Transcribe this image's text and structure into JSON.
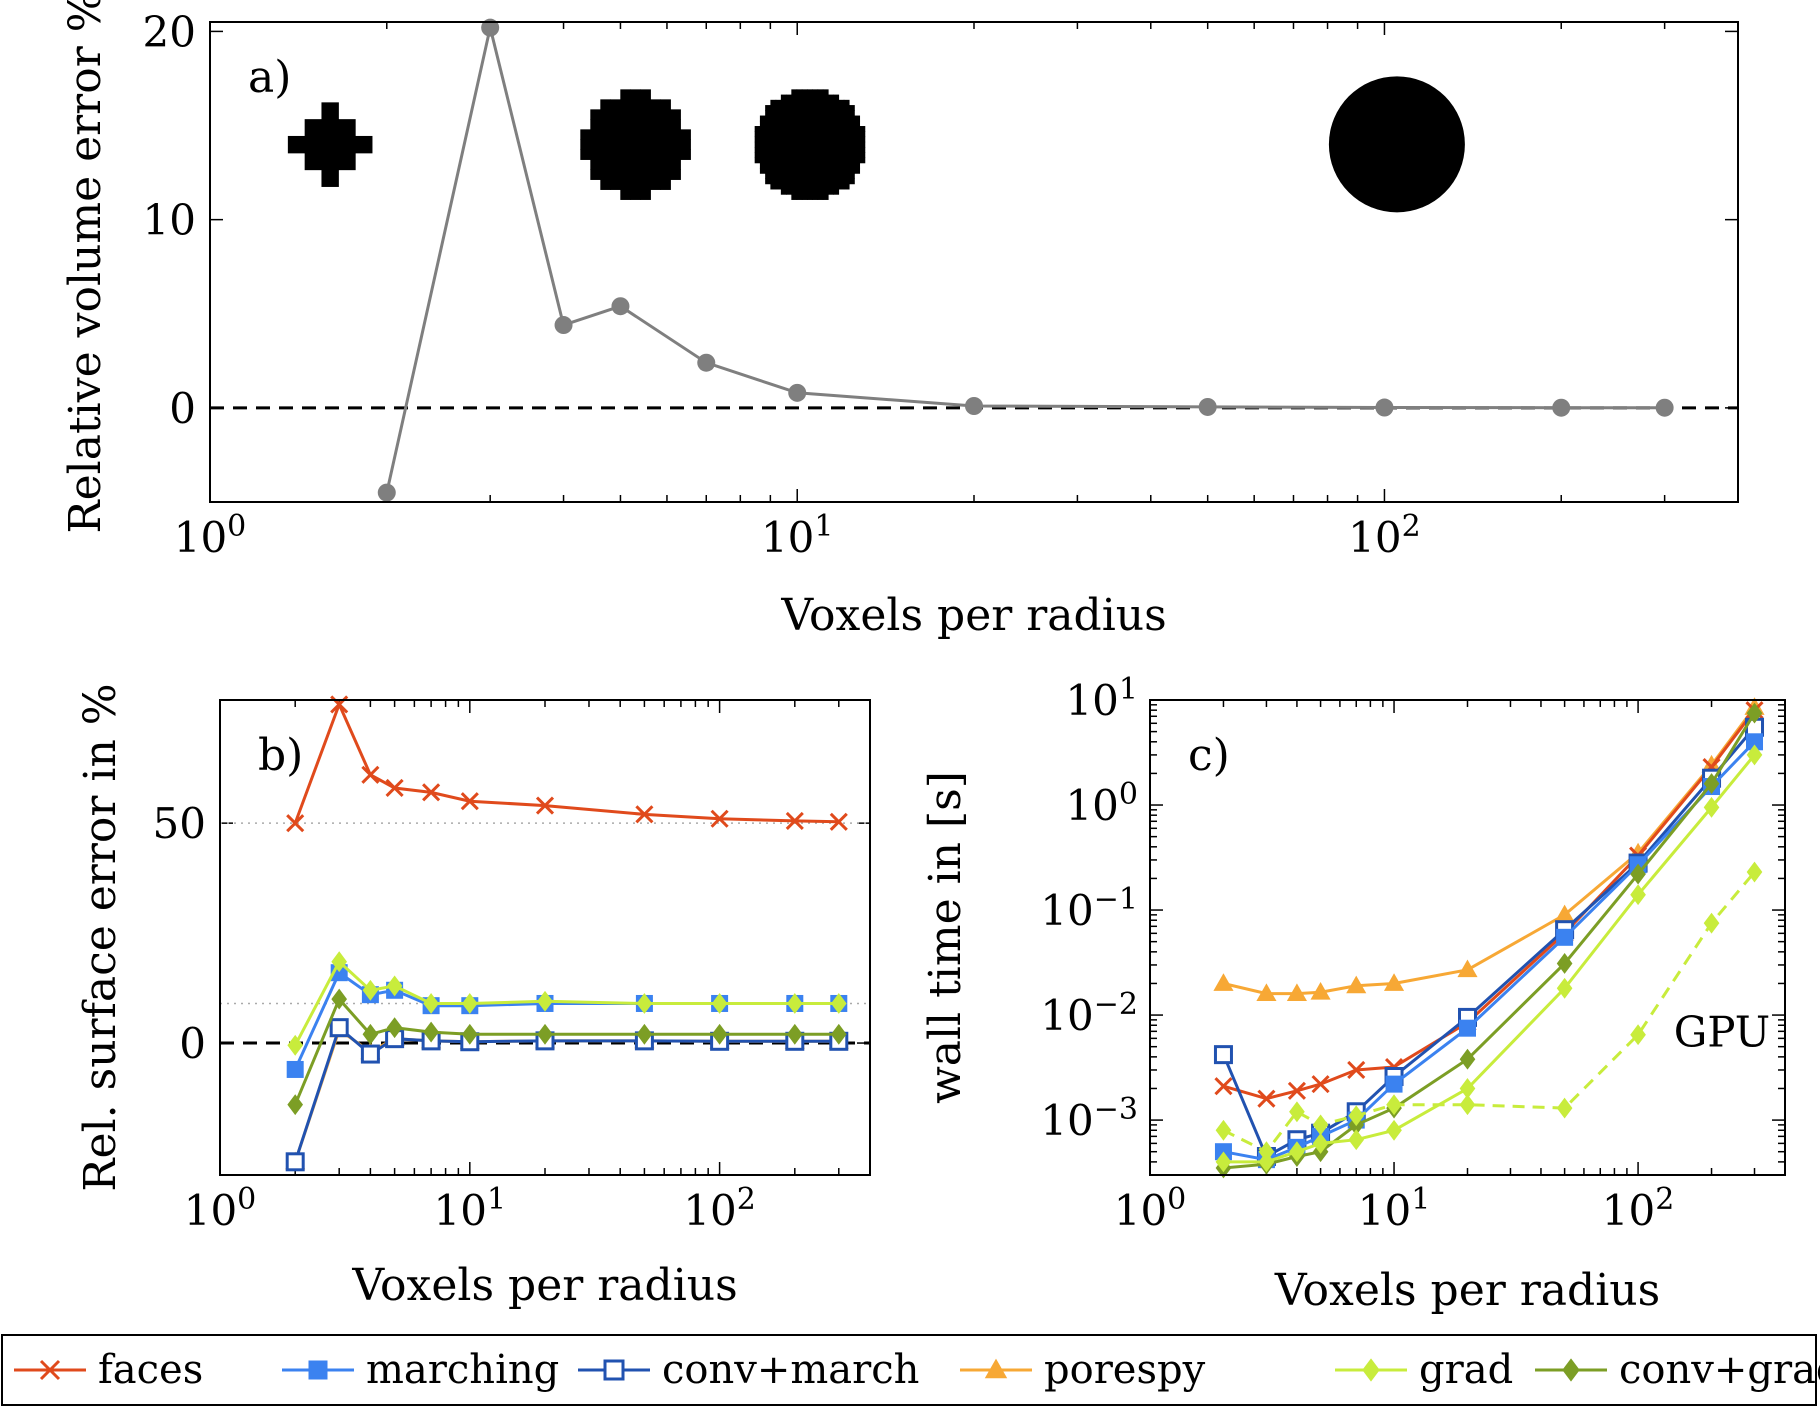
{
  "colors": {
    "faces": "#e04a1c",
    "marching": "#3b82f0",
    "conv_march": "#2152b0",
    "porespy": "#f7a835",
    "grad": "#c8ec3c",
    "conv_grad": "#7c9e25",
    "volume_line": "#7f7f7f",
    "reference": "#000000",
    "guide": "#aaaaaa"
  },
  "legend": {
    "items": [
      {
        "key": "faces",
        "label": "faces",
        "marker": "cross"
      },
      {
        "key": "marching",
        "label": "marching",
        "marker": "square-filled"
      },
      {
        "key": "conv_march",
        "label": "conv+march",
        "marker": "square-open"
      },
      {
        "key": "porespy",
        "label": "porespy",
        "marker": "triangle"
      },
      {
        "key": "grad",
        "label": "grad",
        "marker": "diamond"
      },
      {
        "key": "conv_grad",
        "label": "conv+grad",
        "marker": "diamond"
      }
    ]
  },
  "chart_data": [
    {
      "id": "a",
      "type": "line",
      "panel_label": "a)",
      "xlabel": "Voxels per radius",
      "ylabel": "Relative volume error %",
      "xscale": "log",
      "xlim": [
        1,
        400
      ],
      "ylim": [
        -5,
        20.5
      ],
      "xticks": [
        {
          "value": 1,
          "base": "10",
          "exp": "0"
        },
        {
          "value": 10,
          "base": "10",
          "exp": "1"
        },
        {
          "value": 100,
          "base": "10",
          "exp": "2"
        }
      ],
      "yticks": [
        {
          "value": 0,
          "label": "0"
        },
        {
          "value": 10,
          "label": "10"
        },
        {
          "value": 20,
          "label": "20"
        }
      ],
      "reference_line": {
        "y": 0,
        "style": "dashed"
      },
      "insets": [
        {
          "shape": "voxel-sphere",
          "resolution": 2,
          "x": 1.6,
          "y": 14
        },
        {
          "shape": "voxel-sphere",
          "resolution": 5,
          "x": 5.3,
          "y": 14
        },
        {
          "shape": "voxel-sphere",
          "resolution": 10,
          "x": 10.5,
          "y": 14
        },
        {
          "shape": "sphere",
          "resolution": 100,
          "x": 105,
          "y": 14
        }
      ],
      "series": [
        {
          "key": "volume",
          "x": [
            2,
            3,
            4,
            5,
            7,
            10,
            20,
            50,
            100,
            200,
            300
          ],
          "y": [
            -4.5,
            20.2,
            4.4,
            5.4,
            2.4,
            0.8,
            0.1,
            0.05,
            0.02,
            0.01,
            0.01
          ],
          "marker": "circle"
        }
      ]
    },
    {
      "id": "b",
      "type": "line",
      "panel_label": "b)",
      "xlabel": "Voxels per radius",
      "ylabel": "Rel. surface error in %",
      "xscale": "log",
      "xlim": [
        1,
        400
      ],
      "ylim": [
        -30,
        78
      ],
      "xticks": [
        {
          "value": 1,
          "base": "10",
          "exp": "0"
        },
        {
          "value": 10,
          "base": "10",
          "exp": "1"
        },
        {
          "value": 100,
          "base": "10",
          "exp": "2"
        }
      ],
      "yticks": [
        {
          "value": 0,
          "label": "0"
        },
        {
          "value": 50,
          "label": "50"
        }
      ],
      "reference_line": {
        "y": 0,
        "style": "dashed"
      },
      "guide_lines": [
        50,
        9
      ],
      "series": [
        {
          "key": "faces",
          "x": [
            2,
            3,
            4,
            5,
            7,
            10,
            20,
            50,
            100,
            200,
            300
          ],
          "y": [
            50,
            77,
            61,
            58,
            57,
            55,
            54,
            52,
            51,
            50.5,
            50.3
          ]
        },
        {
          "key": "porespy",
          "x": [
            2,
            3,
            4,
            5,
            7,
            10,
            20,
            50,
            100,
            200,
            300
          ],
          "y": [
            -27,
            3,
            -2,
            1,
            0.5,
            0.3,
            0.5,
            0.5,
            0.4,
            0.4,
            0.4
          ]
        },
        {
          "key": "marching",
          "x": [
            2,
            3,
            4,
            5,
            7,
            10,
            20,
            50,
            100,
            200,
            300
          ],
          "y": [
            -6,
            16,
            11,
            12,
            8.5,
            8.5,
            9,
            9,
            9,
            9,
            9
          ]
        },
        {
          "key": "conv_march",
          "x": [
            2,
            3,
            4,
            5,
            7,
            10,
            20,
            50,
            100,
            200,
            300
          ],
          "y": [
            -27,
            3.5,
            -2.5,
            1,
            0.5,
            0.3,
            0.5,
            0.5,
            0.4,
            0.4,
            0.4
          ]
        },
        {
          "key": "conv_grad",
          "x": [
            2,
            3,
            4,
            5,
            7,
            10,
            20,
            50,
            100,
            200,
            300
          ],
          "y": [
            -14,
            10,
            2,
            3.5,
            2.5,
            2,
            2,
            2,
            2,
            2,
            2
          ]
        },
        {
          "key": "grad",
          "x": [
            2,
            3,
            4,
            5,
            7,
            10,
            20,
            50,
            100,
            200,
            300
          ],
          "y": [
            -0.5,
            18.5,
            12,
            13,
            9,
            9,
            9.5,
            9,
            9,
            9,
            9
          ]
        }
      ]
    },
    {
      "id": "c",
      "type": "line",
      "panel_label": "c)",
      "xlabel": "Voxels per radius",
      "ylabel": "wall time in [s]",
      "xscale": "log",
      "yscale": "log",
      "xlim": [
        1,
        400
      ],
      "ylim": [
        0.0003,
        10
      ],
      "xticks": [
        {
          "value": 1,
          "base": "10",
          "exp": "0"
        },
        {
          "value": 10,
          "base": "10",
          "exp": "1"
        },
        {
          "value": 100,
          "base": "10",
          "exp": "2"
        }
      ],
      "yticks": [
        {
          "value": 0.001,
          "base": "10",
          "exp": "−3"
        },
        {
          "value": 0.01,
          "base": "10",
          "exp": "−2"
        },
        {
          "value": 0.1,
          "base": "10",
          "exp": "−1"
        },
        {
          "value": 1,
          "base": "10",
          "exp": "0"
        },
        {
          "value": 10,
          "base": "10",
          "exp": "1"
        }
      ],
      "annotation": {
        "text": "GPU",
        "x": 140,
        "y": 0.007
      },
      "series": [
        {
          "key": "porespy",
          "x": [
            2,
            3,
            4,
            5,
            7,
            10,
            20,
            50,
            100,
            200,
            300
          ],
          "y": [
            0.02,
            0.016,
            0.016,
            0.0165,
            0.019,
            0.02,
            0.027,
            0.09,
            0.35,
            2.4,
            8.5
          ]
        },
        {
          "key": "faces",
          "x": [
            2,
            3,
            4,
            5,
            7,
            10,
            20,
            50,
            100,
            200,
            300
          ],
          "y": [
            0.0021,
            0.0016,
            0.0019,
            0.0022,
            0.003,
            0.0032,
            0.0085,
            0.06,
            0.33,
            2.3,
            8
          ]
        },
        {
          "key": "conv_march",
          "x": [
            2,
            3,
            4,
            5,
            7,
            10,
            20,
            50,
            100,
            200,
            300
          ],
          "y": [
            0.0042,
            0.00045,
            0.00065,
            0.00075,
            0.0012,
            0.0026,
            0.0095,
            0.065,
            0.28,
            1.8,
            5.5
          ]
        },
        {
          "key": "marching",
          "x": [
            2,
            3,
            4,
            5,
            7,
            10,
            20,
            50,
            100,
            200,
            300
          ],
          "y": [
            0.0005,
            0.00042,
            0.00055,
            0.0007,
            0.001,
            0.0022,
            0.0075,
            0.055,
            0.27,
            1.5,
            4
          ]
        },
        {
          "key": "conv_grad",
          "x": [
            2,
            3,
            4,
            5,
            7,
            10,
            20,
            50,
            100,
            200,
            300
          ],
          "y": [
            0.00035,
            0.00038,
            0.00045,
            0.0005,
            0.0009,
            0.0013,
            0.0038,
            0.031,
            0.22,
            1.6,
            7.5
          ]
        },
        {
          "key": "grad",
          "x": [
            2,
            3,
            4,
            5,
            7,
            10,
            20,
            50,
            100,
            200,
            300
          ],
          "y": [
            0.0004,
            0.0004,
            0.0005,
            0.0006,
            0.00065,
            0.0008,
            0.002,
            0.018,
            0.14,
            0.95,
            3
          ]
        },
        {
          "key": "grad",
          "x": [
            2,
            3,
            4,
            5,
            7,
            10,
            20,
            50,
            100,
            200,
            300
          ],
          "y": [
            0.0008,
            0.0005,
            0.0012,
            0.0009,
            0.0011,
            0.0014,
            0.0014,
            0.0013,
            0.0065,
            0.075,
            0.23
          ],
          "style": "dashed",
          "role": "gpu"
        }
      ]
    }
  ]
}
